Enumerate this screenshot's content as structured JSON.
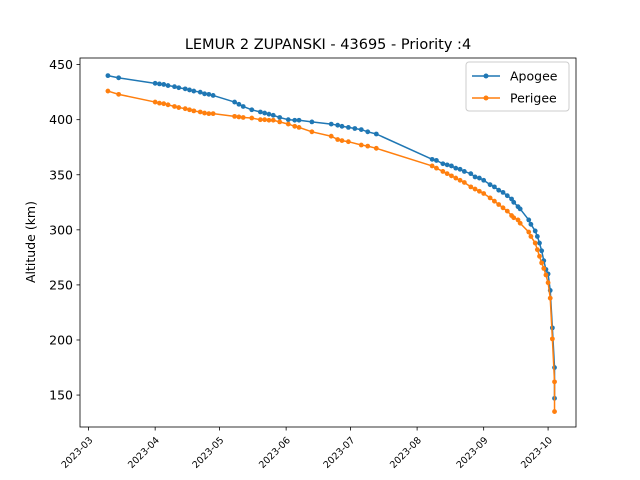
{
  "chart_data": {
    "type": "line",
    "title": "LEMUR 2 ZUPANSKI - 43695 - Priority :4",
    "xlabel": "",
    "ylabel": "Altitude (km)",
    "x_axis": "date",
    "xlim": [
      "2023-02-25",
      "2023-10-14"
    ],
    "ylim": [
      121,
      456
    ],
    "x_ticks": [
      "2023-03",
      "2023-04",
      "2023-05",
      "2023-06",
      "2023-07",
      "2023-08",
      "2023-09",
      "2023-10"
    ],
    "y_ticks": [
      150,
      200,
      250,
      300,
      350,
      400,
      450
    ],
    "legend_position": "top-right",
    "grid": false,
    "series": [
      {
        "name": "Apogee",
        "color": "#1f77b4",
        "points": [
          [
            "2023-03-10",
            440
          ],
          [
            "2023-03-15",
            438
          ],
          [
            "2023-04-01",
            433
          ],
          [
            "2023-04-03",
            432.5
          ],
          [
            "2023-04-05",
            432
          ],
          [
            "2023-04-07",
            431
          ],
          [
            "2023-04-10",
            430
          ],
          [
            "2023-04-12",
            429
          ],
          [
            "2023-04-15",
            428
          ],
          [
            "2023-04-17",
            427
          ],
          [
            "2023-04-19",
            426
          ],
          [
            "2023-04-22",
            425
          ],
          [
            "2023-04-24",
            423.5
          ],
          [
            "2023-04-26",
            423
          ],
          [
            "2023-04-28",
            422
          ],
          [
            "2023-05-08",
            416
          ],
          [
            "2023-05-10",
            414
          ],
          [
            "2023-05-12",
            412
          ],
          [
            "2023-05-16",
            409
          ],
          [
            "2023-05-20",
            407
          ],
          [
            "2023-05-22",
            406
          ],
          [
            "2023-05-24",
            405
          ],
          [
            "2023-05-26",
            404
          ],
          [
            "2023-05-29",
            402
          ],
          [
            "2023-06-02",
            400
          ],
          [
            "2023-06-05",
            399.5
          ],
          [
            "2023-06-07",
            399.5
          ],
          [
            "2023-06-13",
            398
          ],
          [
            "2023-06-22",
            396
          ],
          [
            "2023-06-25",
            395
          ],
          [
            "2023-06-27",
            394
          ],
          [
            "2023-06-30",
            393
          ],
          [
            "2023-07-03",
            392
          ],
          [
            "2023-07-06",
            391
          ],
          [
            "2023-07-09",
            389
          ],
          [
            "2023-07-13",
            387
          ],
          [
            "2023-08-08",
            364
          ],
          [
            "2023-08-10",
            363
          ],
          [
            "2023-08-13",
            360
          ],
          [
            "2023-08-15",
            359
          ],
          [
            "2023-08-17",
            358
          ],
          [
            "2023-08-19",
            356
          ],
          [
            "2023-08-21",
            355
          ],
          [
            "2023-08-23",
            353
          ],
          [
            "2023-08-26",
            351
          ],
          [
            "2023-08-28",
            348
          ],
          [
            "2023-08-30",
            347
          ],
          [
            "2023-09-01",
            345
          ],
          [
            "2023-09-04",
            341
          ],
          [
            "2023-09-06",
            339
          ],
          [
            "2023-09-08",
            336
          ],
          [
            "2023-09-10",
            334
          ],
          [
            "2023-09-12",
            331
          ],
          [
            "2023-09-14",
            328
          ],
          [
            "2023-09-15",
            325
          ],
          [
            "2023-09-17",
            321
          ],
          [
            "2023-09-18",
            319
          ],
          [
            "2023-09-22",
            309
          ],
          [
            "2023-09-23",
            305
          ],
          [
            "2023-09-25",
            299
          ],
          [
            "2023-09-26",
            294
          ],
          [
            "2023-09-27",
            288
          ],
          [
            "2023-09-28",
            281
          ],
          [
            "2023-09-29",
            272
          ],
          [
            "2023-09-30",
            264
          ],
          [
            "2023-10-01",
            260
          ],
          [
            "2023-10-02",
            245
          ],
          [
            "2023-10-03",
            211
          ],
          [
            "2023-10-04",
            175
          ],
          [
            "2023-10-04",
            147
          ]
        ]
      },
      {
        "name": "Perigee",
        "color": "#ff7f0e",
        "points": [
          [
            "2023-03-10",
            426
          ],
          [
            "2023-03-15",
            423
          ],
          [
            "2023-04-01",
            416
          ],
          [
            "2023-04-03",
            415
          ],
          [
            "2023-04-05",
            414.5
          ],
          [
            "2023-04-07",
            413.5
          ],
          [
            "2023-04-10",
            412
          ],
          [
            "2023-04-12",
            411
          ],
          [
            "2023-04-15",
            410
          ],
          [
            "2023-04-17",
            409
          ],
          [
            "2023-04-19",
            408
          ],
          [
            "2023-04-22",
            407
          ],
          [
            "2023-04-24",
            406
          ],
          [
            "2023-04-26",
            405.5
          ],
          [
            "2023-04-28",
            405.5
          ],
          [
            "2023-05-08",
            403
          ],
          [
            "2023-05-10",
            402.5
          ],
          [
            "2023-05-12",
            402
          ],
          [
            "2023-05-16",
            401.5
          ],
          [
            "2023-05-20",
            400
          ],
          [
            "2023-05-22",
            400
          ],
          [
            "2023-05-24",
            399.5
          ],
          [
            "2023-05-26",
            399.5
          ],
          [
            "2023-05-29",
            398
          ],
          [
            "2023-06-02",
            396
          ],
          [
            "2023-06-05",
            394
          ],
          [
            "2023-06-07",
            393
          ],
          [
            "2023-06-13",
            389
          ],
          [
            "2023-06-22",
            385
          ],
          [
            "2023-06-25",
            382
          ],
          [
            "2023-06-27",
            381
          ],
          [
            "2023-06-30",
            380
          ],
          [
            "2023-07-06",
            377
          ],
          [
            "2023-07-09",
            376
          ],
          [
            "2023-07-13",
            374
          ],
          [
            "2023-08-08",
            358
          ],
          [
            "2023-08-10",
            356
          ],
          [
            "2023-08-13",
            353
          ],
          [
            "2023-08-15",
            351
          ],
          [
            "2023-08-17",
            349
          ],
          [
            "2023-08-19",
            347
          ],
          [
            "2023-08-21",
            345
          ],
          [
            "2023-08-23",
            343
          ],
          [
            "2023-08-26",
            339
          ],
          [
            "2023-08-28",
            337
          ],
          [
            "2023-08-30",
            335
          ],
          [
            "2023-09-01",
            333
          ],
          [
            "2023-09-04",
            329
          ],
          [
            "2023-09-06",
            326
          ],
          [
            "2023-09-08",
            323
          ],
          [
            "2023-09-10",
            320
          ],
          [
            "2023-09-12",
            317
          ],
          [
            "2023-09-14",
            313
          ],
          [
            "2023-09-15",
            311
          ],
          [
            "2023-09-17",
            309
          ],
          [
            "2023-09-18",
            306
          ],
          [
            "2023-09-22",
            298
          ],
          [
            "2023-09-23",
            294
          ],
          [
            "2023-09-25",
            288
          ],
          [
            "2023-09-26",
            282
          ],
          [
            "2023-09-27",
            276
          ],
          [
            "2023-09-28",
            270
          ],
          [
            "2023-09-29",
            265
          ],
          [
            "2023-09-30",
            259
          ],
          [
            "2023-10-01",
            252
          ],
          [
            "2023-10-02",
            238
          ],
          [
            "2023-10-03",
            201
          ],
          [
            "2023-10-04",
            162
          ],
          [
            "2023-10-04",
            135
          ]
        ]
      }
    ]
  }
}
